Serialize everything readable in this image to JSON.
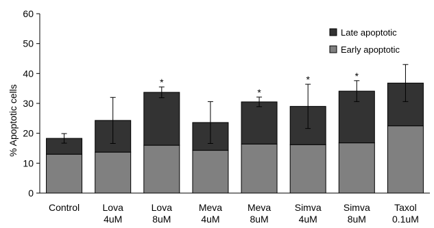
{
  "chart_data": {
    "type": "bar",
    "stacked": true,
    "categories": [
      [
        "Control"
      ],
      [
        "Lova",
        "4uM"
      ],
      [
        "Lova",
        "8uM"
      ],
      [
        "Meva",
        "4uM"
      ],
      [
        "Meva",
        "8uM"
      ],
      [
        "Simva",
        "4uM"
      ],
      [
        "Simva",
        "8uM"
      ],
      [
        "Taxol",
        "0.1uM"
      ]
    ],
    "series": [
      {
        "name": "Early apoptotic",
        "color": "#808080",
        "values": [
          13.0,
          13.7,
          16.0,
          14.3,
          16.4,
          16.2,
          16.8,
          22.5
        ]
      },
      {
        "name": "Late apoptotic",
        "color": "#333333",
        "values": [
          5.3,
          10.6,
          17.7,
          9.3,
          14.1,
          12.8,
          17.3,
          14.3
        ]
      }
    ],
    "error_bars": [
      1.6,
      7.7,
      1.8,
      7.0,
      1.6,
      7.4,
      3.5,
      6.2
    ],
    "significant": [
      false,
      false,
      true,
      false,
      true,
      true,
      true,
      false
    ],
    "significance_marker": "*",
    "ylabel": "% Apoptotic cells",
    "xlabel": "",
    "ylim": [
      0,
      60
    ],
    "yticks": [
      0,
      10,
      20,
      30,
      40,
      50,
      60
    ],
    "grid": false,
    "legend_position": "top-right"
  }
}
